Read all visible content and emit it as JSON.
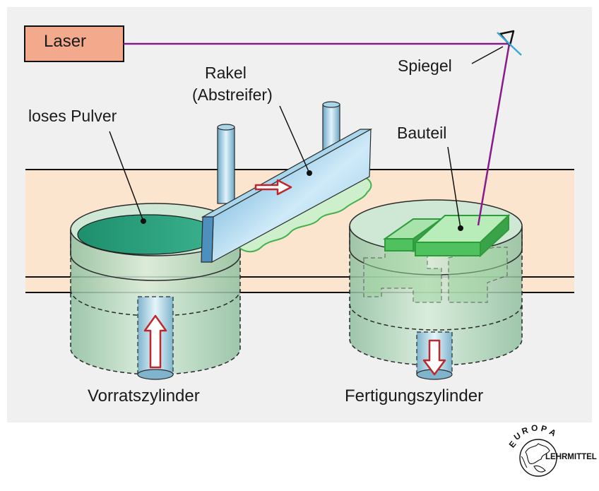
{
  "diagram": {
    "laser_label": "Laser",
    "mirror_label": "Spiegel",
    "squeegee_label_line1": "Rakel",
    "squeegee_label_line2": "(Abstreifer)",
    "powder_label": "loses Pulver",
    "part_label": "Bauteil",
    "supply_cylinder_label": "Vorratszylinder",
    "build_cylinder_label": "Fertigungszylinder"
  },
  "logo": {
    "top_text": "EUROPA",
    "right_text": "LEHRMITTEL"
  },
  "colors": {
    "panel_bg": "#f0f0f0",
    "band": "#fbe5cf",
    "laser_box": "#f3a98c",
    "beam": "#8a1a8a",
    "cylinder": "#b9dcc6",
    "powder_bed": "#2a9d7a",
    "squeegee": "#7ec4e8",
    "part_green": "#4fc15e",
    "arrow_red": "#c0272d"
  }
}
